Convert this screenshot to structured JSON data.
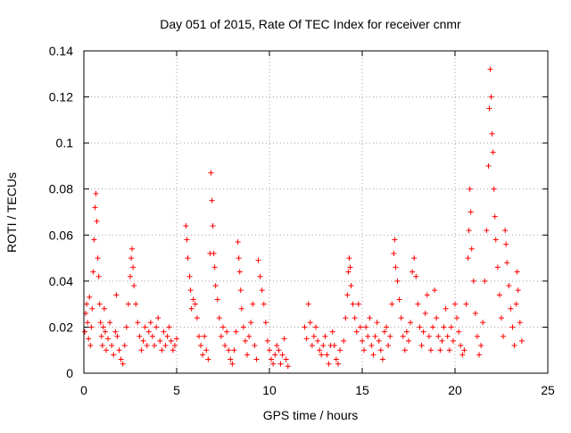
{
  "chart_data": {
    "type": "scatter",
    "title": "Day 051 of 2015, Rate Of TEC Index for receiver cnmr",
    "xlabel": "GPS time / hours",
    "ylabel": "ROTI / TECUs",
    "xlim": [
      0,
      25
    ],
    "ylim": [
      0,
      0.14
    ],
    "xticks": [
      0,
      5,
      10,
      15,
      20,
      25
    ],
    "xtick_labels": [
      "0",
      "5",
      "10",
      "15",
      "20",
      "25"
    ],
    "yticks": [
      0,
      0.02,
      0.04,
      0.06,
      0.08,
      0.1,
      0.12,
      0.14
    ],
    "ytick_labels": [
      "0",
      "0.02",
      "0.04",
      "0.06",
      "0.08",
      "0.1",
      "0.12",
      "0.14"
    ],
    "grid": true,
    "marker": "+",
    "series": [
      {
        "name": "ROTI",
        "color": "#ff0000",
        "points": [
          [
            0.05,
            0.018
          ],
          [
            0.1,
            0.026
          ],
          [
            0.15,
            0.03
          ],
          [
            0.2,
            0.022
          ],
          [
            0.25,
            0.015
          ],
          [
            0.3,
            0.033
          ],
          [
            0.35,
            0.012
          ],
          [
            0.4,
            0.02
          ],
          [
            0.45,
            0.028
          ],
          [
            0.5,
            0.044
          ],
          [
            0.55,
            0.058
          ],
          [
            0.6,
            0.072
          ],
          [
            0.65,
            0.078
          ],
          [
            0.7,
            0.066
          ],
          [
            0.75,
            0.05
          ],
          [
            0.8,
            0.042
          ],
          [
            0.85,
            0.03
          ],
          [
            0.9,
            0.022
          ],
          [
            0.95,
            0.016
          ],
          [
            1.0,
            0.012
          ],
          [
            1.05,
            0.02
          ],
          [
            1.1,
            0.028
          ],
          [
            1.15,
            0.018
          ],
          [
            1.2,
            0.01
          ],
          [
            1.3,
            0.015
          ],
          [
            1.4,
            0.022
          ],
          [
            1.5,
            0.012
          ],
          [
            1.6,
            0.008
          ],
          [
            1.7,
            0.018
          ],
          [
            1.75,
            0.034
          ],
          [
            1.8,
            0.016
          ],
          [
            1.9,
            0.01
          ],
          [
            2.0,
            0.006
          ],
          [
            2.1,
            0.004
          ],
          [
            2.2,
            0.012
          ],
          [
            2.3,
            0.02
          ],
          [
            2.4,
            0.03
          ],
          [
            2.5,
            0.042
          ],
          [
            2.55,
            0.05
          ],
          [
            2.6,
            0.054
          ],
          [
            2.65,
            0.046
          ],
          [
            2.7,
            0.038
          ],
          [
            2.8,
            0.03
          ],
          [
            2.9,
            0.022
          ],
          [
            3.0,
            0.016
          ],
          [
            3.1,
            0.01
          ],
          [
            3.2,
            0.014
          ],
          [
            3.3,
            0.02
          ],
          [
            3.4,
            0.012
          ],
          [
            3.5,
            0.018
          ],
          [
            3.6,
            0.022
          ],
          [
            3.7,
            0.016
          ],
          [
            3.8,
            0.012
          ],
          [
            3.9,
            0.02
          ],
          [
            4.0,
            0.024
          ],
          [
            4.1,
            0.014
          ],
          [
            4.2,
            0.01
          ],
          [
            4.3,
            0.018
          ],
          [
            4.4,
            0.012
          ],
          [
            4.5,
            0.016
          ],
          [
            4.6,
            0.02
          ],
          [
            4.7,
            0.014
          ],
          [
            4.8,
            0.01
          ],
          [
            4.9,
            0.012
          ],
          [
            5.0,
            0.015
          ],
          [
            5.5,
            0.064
          ],
          [
            5.55,
            0.058
          ],
          [
            5.6,
            0.05
          ],
          [
            5.7,
            0.042
          ],
          [
            5.75,
            0.036
          ],
          [
            5.8,
            0.028
          ],
          [
            5.9,
            0.032
          ],
          [
            6.0,
            0.03
          ],
          [
            6.1,
            0.024
          ],
          [
            6.2,
            0.016
          ],
          [
            6.3,
            0.012
          ],
          [
            6.4,
            0.008
          ],
          [
            6.5,
            0.016
          ],
          [
            6.6,
            0.01
          ],
          [
            6.7,
            0.006
          ],
          [
            6.8,
            0.052
          ],
          [
            6.85,
            0.087
          ],
          [
            6.9,
            0.075
          ],
          [
            6.95,
            0.064
          ],
          [
            7.0,
            0.052
          ],
          [
            7.05,
            0.046
          ],
          [
            7.1,
            0.038
          ],
          [
            7.2,
            0.032
          ],
          [
            7.3,
            0.024
          ],
          [
            7.4,
            0.016
          ],
          [
            7.5,
            0.02
          ],
          [
            7.6,
            0.012
          ],
          [
            7.7,
            0.018
          ],
          [
            7.8,
            0.01
          ],
          [
            7.9,
            0.006
          ],
          [
            8.0,
            0.004
          ],
          [
            8.1,
            0.01
          ],
          [
            8.2,
            0.018
          ],
          [
            8.3,
            0.057
          ],
          [
            8.35,
            0.05
          ],
          [
            8.4,
            0.044
          ],
          [
            8.45,
            0.036
          ],
          [
            8.5,
            0.028
          ],
          [
            8.6,
            0.02
          ],
          [
            8.7,
            0.014
          ],
          [
            8.8,
            0.008
          ],
          [
            8.9,
            0.016
          ],
          [
            9.0,
            0.022
          ],
          [
            9.1,
            0.03
          ],
          [
            9.2,
            0.012
          ],
          [
            9.3,
            0.006
          ],
          [
            9.4,
            0.049
          ],
          [
            9.5,
            0.042
          ],
          [
            9.6,
            0.036
          ],
          [
            9.7,
            0.03
          ],
          [
            9.8,
            0.022
          ],
          [
            9.9,
            0.014
          ],
          [
            10.0,
            0.01
          ],
          [
            10.1,
            0.006
          ],
          [
            10.2,
            0.004
          ],
          [
            10.3,
            0.008
          ],
          [
            10.4,
            0.012
          ],
          [
            10.5,
            0.01
          ],
          [
            10.6,
            0.004
          ],
          [
            10.7,
            0.008
          ],
          [
            10.8,
            0.015
          ],
          [
            10.9,
            0.006
          ],
          [
            11.0,
            0.003
          ],
          [
            11.9,
            0.02
          ],
          [
            12.0,
            0.015
          ],
          [
            12.1,
            0.03
          ],
          [
            12.2,
            0.022
          ],
          [
            12.3,
            0.012
          ],
          [
            12.4,
            0.016
          ],
          [
            12.5,
            0.02
          ],
          [
            12.6,
            0.014
          ],
          [
            12.7,
            0.01
          ],
          [
            12.8,
            0.008
          ],
          [
            12.9,
            0.012
          ],
          [
            13.0,
            0.016
          ],
          [
            13.1,
            0.008
          ],
          [
            13.2,
            0.004
          ],
          [
            13.3,
            0.012
          ],
          [
            13.4,
            0.018
          ],
          [
            13.5,
            0.012
          ],
          [
            13.6,
            0.006
          ],
          [
            13.7,
            0.004
          ],
          [
            13.8,
            0.01
          ],
          [
            14.0,
            0.014
          ],
          [
            14.1,
            0.024
          ],
          [
            14.2,
            0.034
          ],
          [
            14.25,
            0.044
          ],
          [
            14.3,
            0.05
          ],
          [
            14.35,
            0.046
          ],
          [
            14.4,
            0.038
          ],
          [
            14.5,
            0.03
          ],
          [
            14.6,
            0.024
          ],
          [
            14.7,
            0.018
          ],
          [
            14.8,
            0.03
          ],
          [
            14.9,
            0.02
          ],
          [
            15.0,
            0.014
          ],
          [
            15.1,
            0.01
          ],
          [
            15.2,
            0.02
          ],
          [
            15.3,
            0.016
          ],
          [
            15.4,
            0.024
          ],
          [
            15.5,
            0.012
          ],
          [
            15.6,
            0.008
          ],
          [
            15.7,
            0.016
          ],
          [
            15.8,
            0.022
          ],
          [
            15.9,
            0.014
          ],
          [
            16.0,
            0.01
          ],
          [
            16.1,
            0.006
          ],
          [
            16.2,
            0.018
          ],
          [
            16.3,
            0.02
          ],
          [
            16.4,
            0.012
          ],
          [
            16.5,
            0.016
          ],
          [
            16.6,
            0.03
          ],
          [
            16.7,
            0.052
          ],
          [
            16.75,
            0.058
          ],
          [
            16.8,
            0.046
          ],
          [
            16.9,
            0.04
          ],
          [
            17.0,
            0.032
          ],
          [
            17.1,
            0.024
          ],
          [
            17.2,
            0.016
          ],
          [
            17.3,
            0.01
          ],
          [
            17.4,
            0.018
          ],
          [
            17.5,
            0.014
          ],
          [
            17.6,
            0.022
          ],
          [
            17.7,
            0.044
          ],
          [
            17.8,
            0.05
          ],
          [
            17.9,
            0.042
          ],
          [
            18.0,
            0.03
          ],
          [
            18.1,
            0.02
          ],
          [
            18.2,
            0.012
          ],
          [
            18.3,
            0.018
          ],
          [
            18.4,
            0.026
          ],
          [
            18.5,
            0.034
          ],
          [
            18.6,
            0.016
          ],
          [
            18.7,
            0.01
          ],
          [
            18.8,
            0.02
          ],
          [
            18.9,
            0.036
          ],
          [
            19.0,
            0.024
          ],
          [
            19.1,
            0.016
          ],
          [
            19.2,
            0.01
          ],
          [
            19.3,
            0.014
          ],
          [
            19.4,
            0.02
          ],
          [
            19.5,
            0.028
          ],
          [
            19.6,
            0.016
          ],
          [
            19.7,
            0.01
          ],
          [
            19.8,
            0.02
          ],
          [
            19.9,
            0.014
          ],
          [
            20.0,
            0.03
          ],
          [
            20.1,
            0.024
          ],
          [
            20.2,
            0.018
          ],
          [
            20.3,
            0.012
          ],
          [
            20.4,
            0.008
          ],
          [
            20.5,
            0.01
          ],
          [
            20.6,
            0.03
          ],
          [
            20.7,
            0.05
          ],
          [
            20.75,
            0.062
          ],
          [
            20.8,
            0.08
          ],
          [
            20.85,
            0.07
          ],
          [
            20.9,
            0.054
          ],
          [
            21.0,
            0.04
          ],
          [
            21.1,
            0.026
          ],
          [
            21.2,
            0.016
          ],
          [
            21.3,
            0.008
          ],
          [
            21.4,
            0.012
          ],
          [
            21.5,
            0.022
          ],
          [
            21.6,
            0.04
          ],
          [
            21.7,
            0.062
          ],
          [
            21.8,
            0.09
          ],
          [
            21.85,
            0.115
          ],
          [
            21.9,
            0.132
          ],
          [
            21.95,
            0.12
          ],
          [
            22.0,
            0.104
          ],
          [
            22.05,
            0.096
          ],
          [
            22.1,
            0.08
          ],
          [
            22.15,
            0.068
          ],
          [
            22.2,
            0.058
          ],
          [
            22.3,
            0.046
          ],
          [
            22.4,
            0.034
          ],
          [
            22.5,
            0.024
          ],
          [
            22.6,
            0.016
          ],
          [
            22.7,
            0.062
          ],
          [
            22.75,
            0.056
          ],
          [
            22.8,
            0.048
          ],
          [
            22.9,
            0.038
          ],
          [
            23.0,
            0.028
          ],
          [
            23.1,
            0.02
          ],
          [
            23.2,
            0.012
          ],
          [
            23.3,
            0.03
          ],
          [
            23.35,
            0.044
          ],
          [
            23.4,
            0.036
          ],
          [
            23.5,
            0.022
          ],
          [
            23.6,
            0.014
          ]
        ]
      }
    ]
  }
}
